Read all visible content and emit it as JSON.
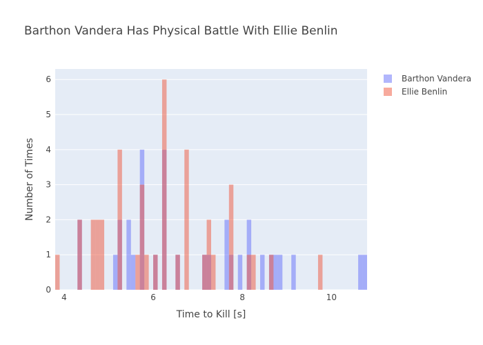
{
  "chart_data": {
    "type": "histogram",
    "title": "Barthon Vandera Has Physical Battle With Ellie Benlin",
    "xlabel": "Time to Kill [s]",
    "ylabel": "Number of Times",
    "xlim": [
      3.8,
      10.8
    ],
    "ylim": [
      0,
      6.3
    ],
    "xticks": [
      4,
      6,
      8,
      10
    ],
    "yticks": [
      0,
      1,
      2,
      3,
      4,
      5,
      6
    ],
    "grid": true,
    "barmode": "overlay",
    "bin_width": 0.1,
    "legend_position": "top-right",
    "series": [
      {
        "name": "Barthon Vandera",
        "color": "#636efa",
        "opacity": 0.5,
        "bins": [
          {
            "x0": 4.3,
            "count": 2
          },
          {
            "x0": 5.1,
            "count": 1
          },
          {
            "x0": 5.2,
            "count": 2
          },
          {
            "x0": 5.4,
            "count": 2
          },
          {
            "x0": 5.5,
            "count": 1
          },
          {
            "x0": 5.7,
            "count": 4
          },
          {
            "x0": 6.0,
            "count": 1
          },
          {
            "x0": 6.2,
            "count": 4
          },
          {
            "x0": 6.5,
            "count": 1
          },
          {
            "x0": 7.1,
            "count": 1
          },
          {
            "x0": 7.2,
            "count": 1
          },
          {
            "x0": 7.6,
            "count": 2
          },
          {
            "x0": 7.7,
            "count": 1
          },
          {
            "x0": 7.9,
            "count": 1
          },
          {
            "x0": 8.1,
            "count": 2
          },
          {
            "x0": 8.4,
            "count": 1
          },
          {
            "x0": 8.6,
            "count": 1
          },
          {
            "x0": 8.7,
            "count": 1
          },
          {
            "x0": 8.8,
            "count": 1
          },
          {
            "x0": 9.1,
            "count": 1
          },
          {
            "x0": 10.6,
            "count": 1
          },
          {
            "x0": 10.7,
            "count": 1
          }
        ]
      },
      {
        "name": "Ellie Benlin",
        "color": "#ef553b",
        "opacity": 0.5,
        "bins": [
          {
            "x0": 3.8,
            "count": 1
          },
          {
            "x0": 4.3,
            "count": 2
          },
          {
            "x0": 4.6,
            "count": 2
          },
          {
            "x0": 4.7,
            "count": 2
          },
          {
            "x0": 4.8,
            "count": 2
          },
          {
            "x0": 5.2,
            "count": 4
          },
          {
            "x0": 5.6,
            "count": 1
          },
          {
            "x0": 5.7,
            "count": 3
          },
          {
            "x0": 5.8,
            "count": 1
          },
          {
            "x0": 6.0,
            "count": 1
          },
          {
            "x0": 6.2,
            "count": 6
          },
          {
            "x0": 6.5,
            "count": 1
          },
          {
            "x0": 6.7,
            "count": 4
          },
          {
            "x0": 7.1,
            "count": 1
          },
          {
            "x0": 7.2,
            "count": 2
          },
          {
            "x0": 7.3,
            "count": 1
          },
          {
            "x0": 7.7,
            "count": 3
          },
          {
            "x0": 8.1,
            "count": 1
          },
          {
            "x0": 8.2,
            "count": 1
          },
          {
            "x0": 8.6,
            "count": 1
          },
          {
            "x0": 9.7,
            "count": 1
          }
        ]
      }
    ]
  }
}
